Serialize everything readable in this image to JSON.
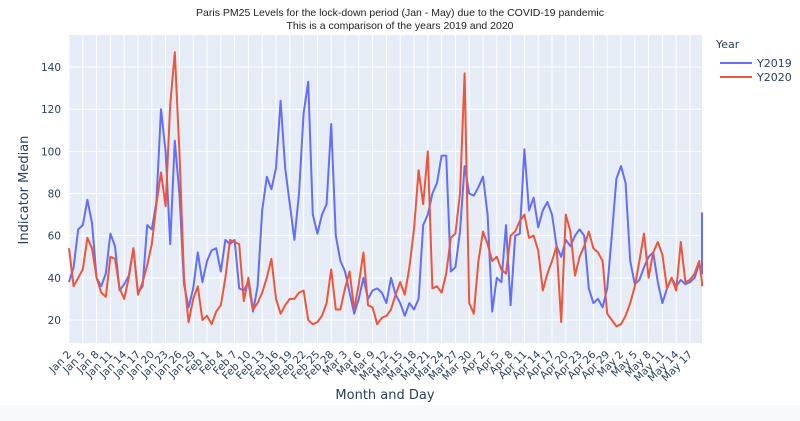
{
  "chart_data": {
    "type": "line",
    "title": "Paris PM25 Levels for the lock-down period (Jan - May) due to the COVID-19 pandemic",
    "subtitle": "This is a comparison of the years 2019 and 2020",
    "xlabel": "Month and Day",
    "ylabel": "Indicator Median",
    "ylim": [
      10,
      155
    ],
    "yticks": [
      20,
      40,
      60,
      80,
      100,
      120,
      140
    ],
    "grid": true,
    "legend_position": "right-top",
    "legend_title": "Year",
    "x_ticks": [
      "Jan 2",
      "Jan 5",
      "Jan 8",
      "Jan 11",
      "Jan 14",
      "Jan 17",
      "Jan 20",
      "Jan 23",
      "Jan 26",
      "Jan 29",
      "Feb 1",
      "Feb 4",
      "Feb 7",
      "Feb 10",
      "Feb 13",
      "Feb 16",
      "Feb 19",
      "Feb 22",
      "Feb 25",
      "Feb 28",
      "Mar 3",
      "Mar 6",
      "Mar 9",
      "Mar 12",
      "Mar 15",
      "Mar 18",
      "Mar 21",
      "Mar 24",
      "Mar 27",
      "Mar 30",
      "Apr 2",
      "Apr 5",
      "Apr 8",
      "Apr 11",
      "Apr 14",
      "Apr 17",
      "Apr 20",
      "Apr 23",
      "Apr 26",
      "Apr 29",
      "May 2",
      "May 5",
      "May 8",
      "May 11",
      "May 14",
      "May 17"
    ],
    "x_start": "Jan 2",
    "x_step_days": 1,
    "series": [
      {
        "name": "Y2019",
        "color": "#636efa",
        "values": [
          38,
          45,
          63,
          65,
          77,
          66,
          40,
          36,
          42,
          61,
          55,
          34,
          37,
          41,
          54,
          33,
          36,
          65,
          63,
          76,
          120,
          100,
          56,
          105,
          80,
          37,
          26,
          35,
          52,
          38,
          48,
          53,
          54,
          43,
          58,
          56,
          58,
          35,
          34,
          38,
          24,
          36,
          72,
          88,
          82,
          92,
          124,
          92,
          75,
          58,
          80,
          118,
          133,
          70,
          61,
          70,
          75,
          113,
          60,
          48,
          43,
          33,
          23,
          30,
          40,
          30,
          34,
          35,
          33,
          28,
          40,
          32,
          28,
          22,
          28,
          25,
          30,
          65,
          70,
          80,
          85,
          98,
          98,
          43,
          45,
          62,
          93,
          80,
          79,
          83,
          88,
          70,
          24,
          40,
          38,
          65,
          27,
          60,
          61,
          101,
          72,
          78,
          64,
          72,
          76,
          70,
          55,
          50,
          58,
          55,
          60,
          63,
          60,
          35,
          28,
          30,
          26,
          35,
          60,
          87,
          93,
          85,
          48,
          37,
          39,
          45,
          50,
          52,
          38,
          28,
          35,
          40,
          36,
          39,
          37,
          38,
          40,
          47,
          42,
          61,
          48,
          71
        ],
        "unit": "day index from Jan 2"
      },
      {
        "name": "Y2020",
        "color": "#ef553b",
        "values": [
          54,
          36,
          40,
          44,
          59,
          54,
          40,
          33,
          31,
          50,
          49,
          35,
          30,
          40,
          54,
          32,
          38,
          46,
          56,
          75,
          90,
          74,
          122,
          147,
          100,
          40,
          19,
          30,
          36,
          20,
          22,
          18,
          24,
          27,
          40,
          58,
          57,
          56,
          29,
          40,
          25,
          28,
          33,
          40,
          49,
          30,
          23,
          27,
          30,
          30,
          33,
          34,
          20,
          18,
          19,
          22,
          28,
          44,
          25,
          25,
          35,
          43,
          25,
          37,
          52,
          27,
          26,
          18,
          21,
          22,
          25,
          32,
          38,
          32,
          45,
          63,
          91,
          75,
          100,
          35,
          36,
          33,
          42,
          59,
          61,
          80,
          137,
          28,
          23,
          48,
          62,
          56,
          48,
          50,
          44,
          42,
          60,
          62,
          67,
          70,
          59,
          60,
          53,
          34,
          42,
          48,
          55,
          19,
          70,
          62,
          41,
          50,
          55,
          62,
          54,
          52,
          48,
          23,
          20,
          17,
          18,
          22,
          28,
          36,
          48,
          61,
          40,
          52,
          57,
          51,
          35,
          40,
          34,
          57,
          38,
          39,
          42,
          48,
          38,
          36,
          36
        ],
        "unit": "day index from Jan 2"
      }
    ]
  },
  "legend": {
    "title": "Year",
    "items": [
      {
        "label": "Y2019",
        "color": "#636efa"
      },
      {
        "label": "Y2020",
        "color": "#ef553b"
      }
    ]
  },
  "colors": {
    "plot_bg": "#e5ecf6",
    "grid": "#ffffff",
    "axis_text": "#2a3f5f"
  }
}
